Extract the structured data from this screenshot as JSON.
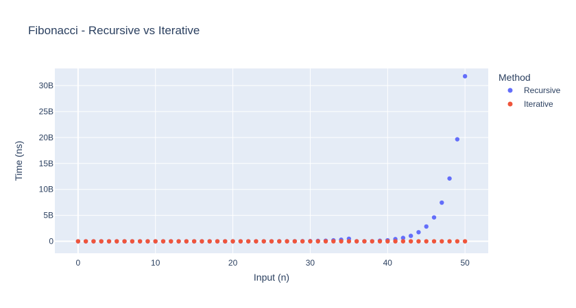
{
  "chart_data": {
    "type": "scatter",
    "title": "Fibonacci - Recursive vs Iterative",
    "xlabel": "Input (n)",
    "ylabel": "Time (ns)",
    "xlim": [
      -3,
      53
    ],
    "ylim": [
      -2300000000,
      33300000000
    ],
    "x_ticks": [
      0,
      10,
      20,
      30,
      40,
      50
    ],
    "y_ticks": [
      0,
      5000000000,
      10000000000,
      15000000000,
      20000000000,
      25000000000,
      30000000000
    ],
    "y_tick_labels": [
      "0",
      "5B",
      "10B",
      "15B",
      "20B",
      "25B",
      "30B"
    ],
    "grid": true,
    "legend": {
      "title": "Method",
      "placement": "right"
    },
    "background_color": "#e5ecf6",
    "series": [
      {
        "name": "Recursive",
        "color": "#636efa",
        "x": [
          0,
          1,
          2,
          3,
          4,
          5,
          6,
          7,
          8,
          9,
          10,
          11,
          12,
          13,
          14,
          15,
          16,
          17,
          18,
          19,
          20,
          21,
          22,
          23,
          24,
          25,
          26,
          27,
          28,
          29,
          30,
          31,
          32,
          33,
          34,
          35,
          36,
          37,
          38,
          39,
          40,
          41,
          42,
          43,
          44,
          45,
          46,
          47,
          48,
          49,
          50
        ],
        "y": [
          0,
          0,
          0,
          0,
          0,
          0,
          0,
          0,
          0,
          0,
          0,
          0,
          0,
          0,
          0,
          0,
          0,
          0,
          0,
          0,
          0,
          0,
          1000000,
          1500000,
          2500000,
          4000000,
          6500000,
          11000000,
          17000000,
          28000000,
          45000000,
          73000000,
          118000000,
          190000000,
          310000000,
          500000000,
          8000000,
          13000000,
          21000000,
          110000000,
          200000000,
          420000000,
          650000000,
          1050000000,
          1750000000,
          2850000000,
          4600000000,
          7450000000,
          12100000000,
          19650000000,
          31800000000
        ]
      },
      {
        "name": "Iterative",
        "color": "#ef553b",
        "x": [
          0,
          1,
          2,
          3,
          4,
          5,
          6,
          7,
          8,
          9,
          10,
          11,
          12,
          13,
          14,
          15,
          16,
          17,
          18,
          19,
          20,
          21,
          22,
          23,
          24,
          25,
          26,
          27,
          28,
          29,
          30,
          31,
          32,
          33,
          34,
          35,
          36,
          37,
          38,
          39,
          40,
          41,
          42,
          43,
          44,
          45,
          46,
          47,
          48,
          49,
          50
        ],
        "y": [
          100,
          100,
          100,
          100,
          100,
          100,
          100,
          100,
          100,
          100,
          100,
          100,
          100,
          100,
          100,
          100,
          100,
          100,
          100,
          100,
          100,
          100,
          100,
          100,
          100,
          100,
          100,
          100,
          100,
          100,
          100,
          100,
          100,
          100,
          100,
          100,
          100,
          100,
          100,
          100,
          100,
          100,
          100,
          100,
          100,
          100,
          100,
          100,
          100,
          100,
          100
        ]
      }
    ]
  }
}
